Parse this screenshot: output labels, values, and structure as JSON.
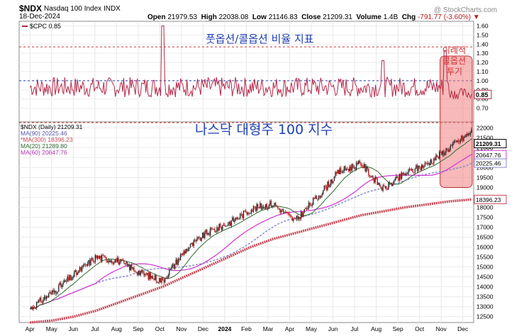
{
  "header": {
    "symbol": "$NDX",
    "name": "Nasdaq 100 Index  INDX",
    "date": "18-Dec-2024",
    "open_label": "Open",
    "open": "21979.53",
    "high_label": "High",
    "high": "22038.08",
    "low_label": "Low",
    "low": "21146.83",
    "close_label": "Close",
    "close": "21209.31",
    "volume_label": "Volume",
    "volume": "1.4B",
    "chg_label": "Chg",
    "chg": "-791.77 (-3.60%)",
    "chg_icon": "down-triangle-icon",
    "watermark": "@ StockCharts.com"
  },
  "colors": {
    "cpc": "#b5294a",
    "price_up": "#2a2a2a",
    "price_down": "#c01818",
    "ma20": "#2f6b2f",
    "ma60": "#d43fd4",
    "ma90": "#8a8ad0",
    "ma300": "#c94a58",
    "annotation_blue": "#1f3fb5",
    "annotation_red": "#d03030",
    "highlight": "#f08080"
  },
  "chart_data": [
    {
      "type": "line",
      "panel": "upper",
      "legend": "$CPC 0.85",
      "title_annotation": "풋옵션/콜옵션 비율 지표",
      "side_annotation": [
        "이례적",
        "콜옵션",
        "투기"
      ],
      "last_value_label": "0.85",
      "ylim": [
        0.55,
        1.65
      ],
      "yticks": [
        0.7,
        0.8,
        0.9,
        1.0,
        1.1,
        1.2,
        1.3,
        1.4,
        1.5,
        1.6
      ],
      "ytick_labels": [
        "0.70",
        "0.80",
        "0.90",
        "1.00",
        "1.10",
        "1.20",
        "1.30",
        "1.40",
        "1.50",
        "1.60"
      ],
      "reference_lines": [
        1.37,
        1.0
      ],
      "series_approx": {
        "name": "$CPC",
        "key_points": [
          {
            "month": "Apr 2023",
            "value": 0.93
          },
          {
            "month": "Oct 2023",
            "value": 1.6
          },
          {
            "month": "Jan 2024",
            "value": 0.92
          },
          {
            "month": "Jun 2024",
            "value": 0.82
          },
          {
            "month": "Aug 2024",
            "value": 1.22
          },
          {
            "month": "Nov 2024",
            "value": 1.33
          },
          {
            "month": "Dec 2024",
            "value": 0.85
          }
        ]
      }
    },
    {
      "type": "line",
      "panel": "lower",
      "title_annotation": "나스닥 대형주 100 지수",
      "legend": [
        "$NDX (Daily) 21209.31",
        "MA(90) 20225.46",
        "*MA(300) 18396.23",
        "MA(20) 21289.80",
        "MA(60) 20647.76"
      ],
      "ylim": [
        12200,
        22300
      ],
      "yticks": [
        12500,
        13000,
        13500,
        14000,
        14500,
        15000,
        15500,
        16000,
        16500,
        17000,
        17500,
        18000,
        18500,
        19000,
        19500,
        20000,
        20500,
        21000,
        21500,
        22000
      ],
      "ytick_labels": [
        "12500",
        "13000",
        "13500",
        "14000",
        "14500",
        "15000",
        "15500",
        "16000",
        "16500",
        "17000",
        "17500",
        "18000",
        "18500",
        "19000",
        "19500",
        "20000",
        "20500",
        "21000",
        "21500",
        "22000"
      ],
      "last_value_labels": [
        {
          "label": "21209.31",
          "value": 21209.31
        },
        {
          "label": "20647.76",
          "value": 20647.76
        },
        {
          "label": "20225.46",
          "value": 20225.46
        },
        {
          "label": "18396.23",
          "value": 18396.23
        }
      ],
      "x_tick_labels": [
        "Apr",
        "May",
        "Jun",
        "Jul",
        "Aug",
        "Sep",
        "Oct",
        "Nov",
        "Dec",
        "2024",
        "Feb",
        "Mar",
        "Apr",
        "May",
        "Jun",
        "Jul",
        "Aug",
        "Sep",
        "Oct",
        "Nov",
        "Dec"
      ],
      "x_months": [
        "2023-04",
        "2023-05",
        "2023-06",
        "2023-07",
        "2023-08",
        "2023-09",
        "2023-10",
        "2023-11",
        "2023-12",
        "2024-01",
        "2024-02",
        "2024-03",
        "2024-04",
        "2024-05",
        "2024-06",
        "2024-07",
        "2024-08",
        "2024-09",
        "2024-10",
        "2024-11",
        "2024-12"
      ],
      "monthly_close_approx": [
        12900,
        13700,
        14600,
        15500,
        15300,
        14700,
        14300,
        15800,
        16700,
        17200,
        17900,
        18200,
        17300,
        18500,
        19800,
        20200,
        18900,
        19700,
        20200,
        21000,
        21800
      ],
      "ma300_approx": [
        12200,
        12300,
        12500,
        12800,
        13200,
        13600,
        14000,
        14500,
        15000,
        15500,
        16000,
        16400,
        16700,
        17000,
        17300,
        17600,
        17800,
        18000,
        18150,
        18300,
        18396
      ],
      "highlight_window": [
        "2024-11",
        "2024-12"
      ]
    }
  ]
}
